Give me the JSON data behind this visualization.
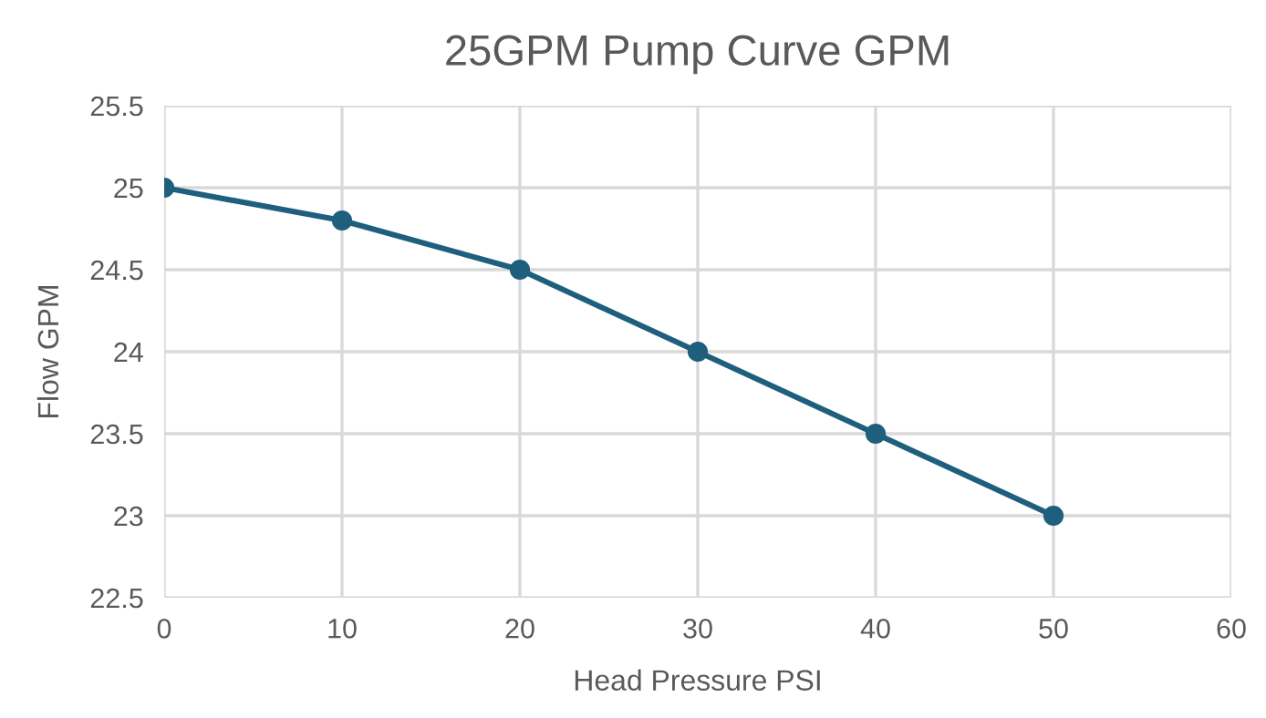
{
  "chart_data": {
    "type": "line",
    "title": "25GPM Pump Curve GPM",
    "xlabel": "Head Pressure PSI",
    "ylabel": "Flow GPM",
    "x": [
      0,
      10,
      20,
      30,
      40,
      50
    ],
    "series": [
      {
        "color": "#1f5f7e",
        "values": [
          25,
          24.8,
          24.5,
          24,
          23.5,
          23
        ]
      }
    ],
    "xlim": [
      0,
      60
    ],
    "xticks": [
      0,
      10,
      20,
      30,
      40,
      50,
      60
    ],
    "ylim": [
      22.5,
      25.5
    ],
    "yticks": [
      22.5,
      23,
      23.5,
      24,
      24.5,
      25,
      25.5
    ],
    "grid": true,
    "marker": "circle",
    "line_style": "solid"
  }
}
